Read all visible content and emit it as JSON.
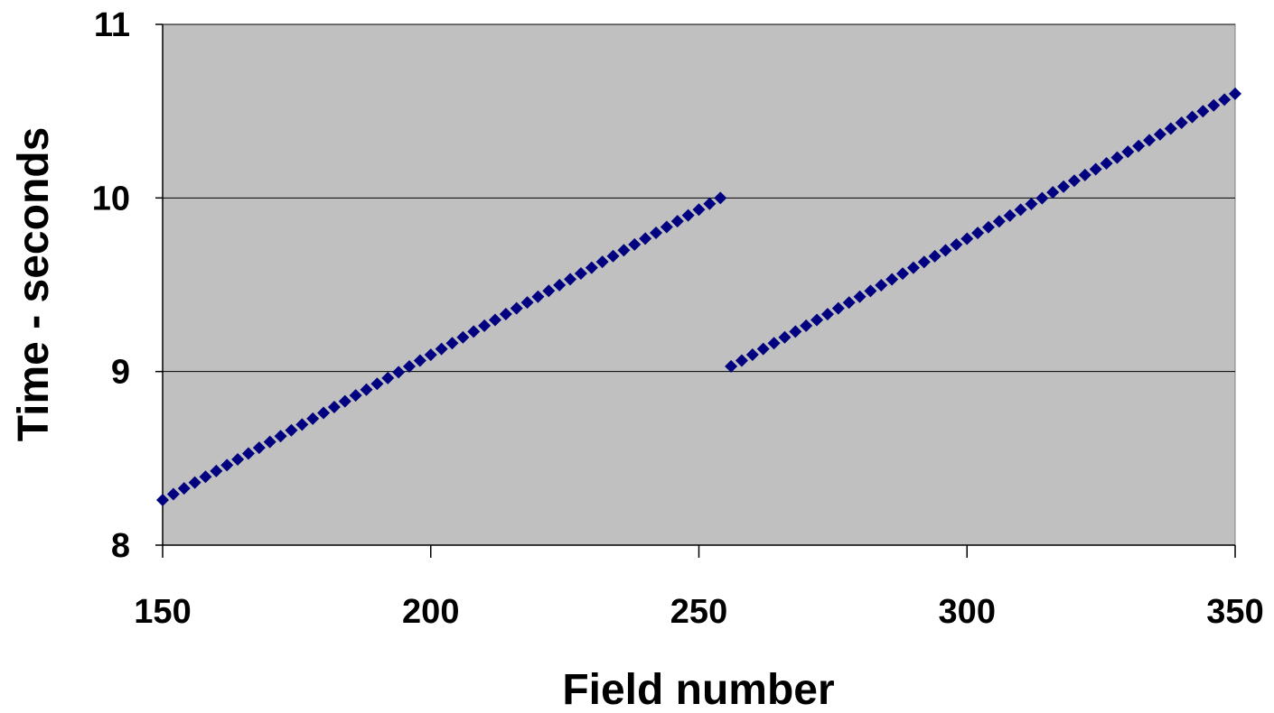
{
  "chart_data": {
    "type": "scatter",
    "title": "",
    "xlabel": "Field number",
    "ylabel": "Time - seconds",
    "xlim": [
      150,
      350
    ],
    "ylim": [
      8,
      11
    ],
    "x_ticks": [
      150,
      200,
      250,
      300,
      350
    ],
    "y_ticks": [
      8,
      9,
      10,
      11
    ],
    "x_tick_labels": [
      "150",
      "200",
      "250",
      "300",
      "350"
    ],
    "y_tick_labels": [
      "8",
      "9",
      "10",
      "11"
    ],
    "grid": "horizontal",
    "legend": "none",
    "plot_background": "#c0c0c0",
    "marker_color": "#000080",
    "marker": "diamond",
    "series": [
      {
        "segments": [
          {
            "x_start": 150,
            "x_end": 254,
            "x_step": 2,
            "y_start": 8.26,
            "y_end": 10.0
          },
          {
            "x_start": 256,
            "x_end": 350,
            "x_step": 2,
            "y_start": 9.03,
            "y_end": 10.6
          }
        ]
      }
    ]
  }
}
